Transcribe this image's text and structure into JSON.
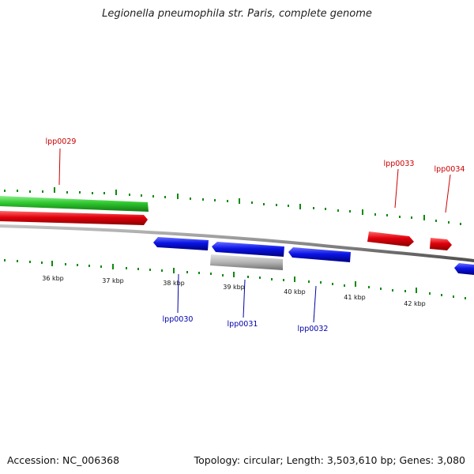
{
  "title": "Legionella pneumophila str. Paris, complete genome",
  "footer": {
    "accession": "Accession: NC_006368",
    "stats": "Topology: circular; Length: 3,503,610 bp; Genes: 3,080"
  },
  "colors": {
    "forward_gene": "#e0000c",
    "reverse_gene": "#0a14e6",
    "feature_green": "#2ec82e",
    "pseudo_gray": "#b4b4b4",
    "backbone": "#888888",
    "tick": "#0c8a0c",
    "label_red": "#cc0000",
    "label_blue": "#0000aa"
  },
  "tick_labels": [
    "36 kbp",
    "37 kbp",
    "38 kbp",
    "39 kbp",
    "40 kbp",
    "41 kbp",
    "42 kbp"
  ],
  "gene_labels": {
    "lpp0029": "lpp0029",
    "lpp0030": "lpp0030",
    "lpp0031": "lpp0031",
    "lpp0032": "lpp0032",
    "lpp0033": "lpp0033",
    "lpp0034": "lpp0034"
  }
}
